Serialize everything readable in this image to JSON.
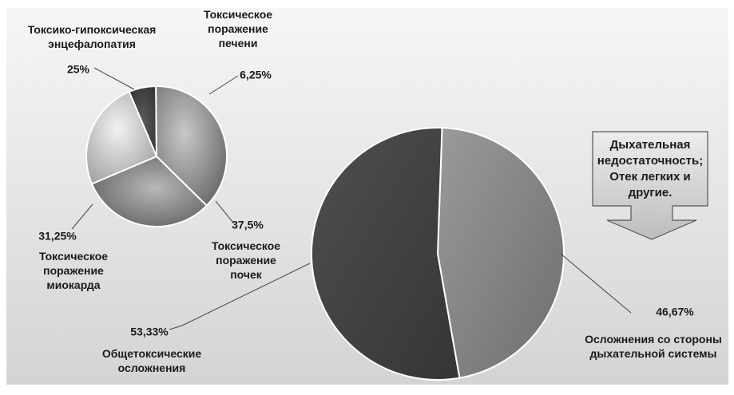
{
  "chart_data": [
    {
      "type": "pie",
      "slices": [
        {
          "label": [
            "Токсическое",
            "поражение",
            "печени"
          ],
          "value": 6.25,
          "value_label": "6,25%"
        },
        {
          "label": [
            "Токсическое",
            "поражение",
            "почек"
          ],
          "value": 37.5,
          "value_label": "37,5%"
        },
        {
          "label": [
            "Токсическое",
            "поражение",
            "миокарда"
          ],
          "value": 31.25,
          "value_label": "31,25%"
        },
        {
          "label": [
            "Токсико-гипоксическая",
            "энцефалопатия"
          ],
          "value": 25,
          "value_label": "25%"
        }
      ]
    },
    {
      "type": "pie",
      "slices": [
        {
          "label": [
            "Осложнения со стороны",
            "дыхательной системы"
          ],
          "value": 46.67,
          "value_label": "46,67%"
        },
        {
          "label": [
            "Общетоксические",
            "осложнения"
          ],
          "value": 53.33,
          "value_label": "53,33%"
        }
      ]
    }
  ],
  "callout": {
    "lines": [
      "Дыхательная",
      "недостаточность;",
      "Отек легких и",
      "другие."
    ]
  },
  "colors": {
    "background_top": "#f4f4f4",
    "background_bottom": "#d6d6d6",
    "dark_slice": "#4a4a4a",
    "mid_slice": "#7a7a7a",
    "light_slice": "#cfcfcf",
    "small_dark": "#3a3a3a"
  }
}
